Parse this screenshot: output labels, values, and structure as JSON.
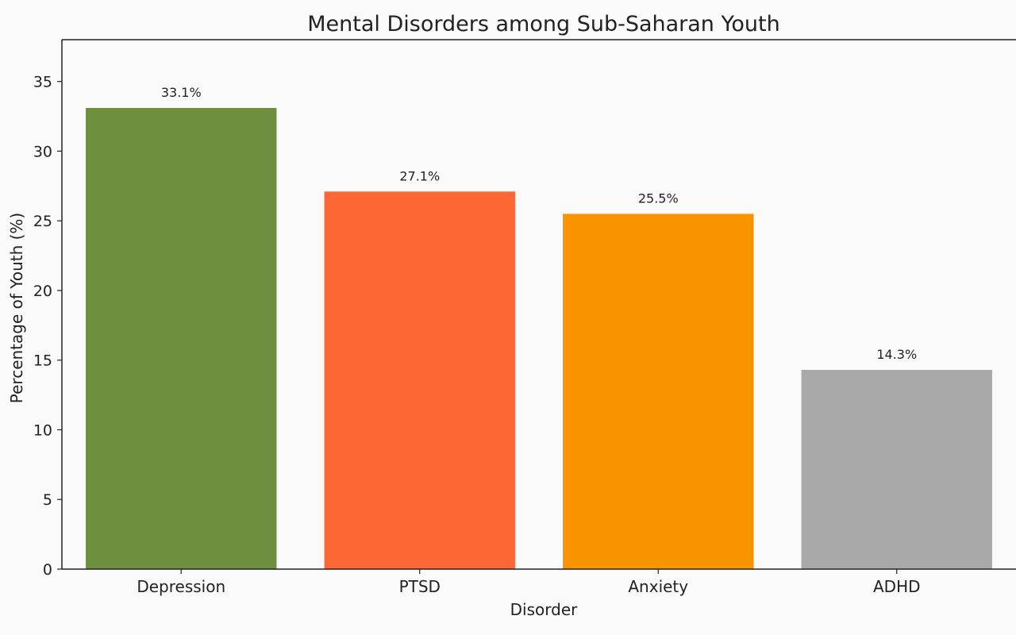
{
  "chart_data": {
    "type": "bar",
    "title": "Mental Disorders among Sub-Saharan Youth",
    "xlabel": "Disorder",
    "ylabel": "Percentage of Youth (%)",
    "categories": [
      "Depression",
      "PTSD",
      "Anxiety",
      "ADHD"
    ],
    "values": [
      33.1,
      27.1,
      25.5,
      14.3
    ],
    "value_labels": [
      "33.1%",
      "27.1%",
      "25.5%",
      "14.3%"
    ],
    "colors": [
      "#6e8f3d",
      "#fd6734",
      "#f89400",
      "#a9a9a9"
    ],
    "ylim": [
      0,
      38
    ],
    "yticks": [
      0,
      5,
      10,
      15,
      20,
      25,
      30,
      35
    ],
    "grid": false,
    "legend": "none"
  }
}
